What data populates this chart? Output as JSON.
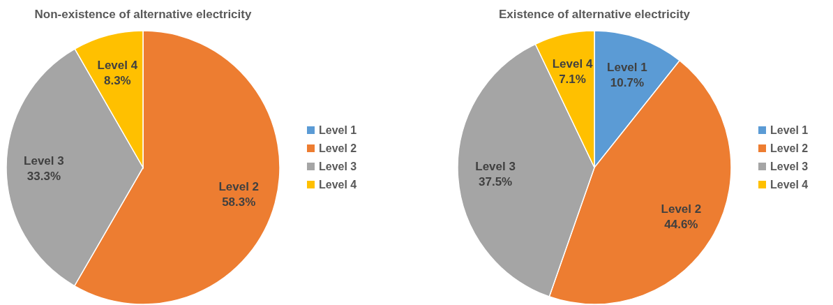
{
  "chart_data": [
    {
      "type": "pie",
      "title": "Non-existence of alternative electricity",
      "categories": [
        "Level 1",
        "Level 2",
        "Level 3",
        "Level 4"
      ],
      "values": [
        0,
        58.3,
        33.3,
        8.3
      ],
      "colors": [
        "#5b9bd5",
        "#ed7d31",
        "#a5a5a5",
        "#ffc000"
      ],
      "value_labels": [
        null,
        "58.3%",
        "33.3%",
        "8.3%"
      ],
      "legend": "right"
    },
    {
      "type": "pie",
      "title": "Existence of alternative electricity",
      "categories": [
        "Level 1",
        "Level 2",
        "Level 3",
        "Level 4"
      ],
      "values": [
        10.7,
        44.6,
        37.5,
        7.1
      ],
      "colors": [
        "#5b9bd5",
        "#ed7d31",
        "#a5a5a5",
        "#ffc000"
      ],
      "value_labels": [
        "10.7%",
        "44.6%",
        "37.5%",
        "7.1%"
      ],
      "legend": "right"
    }
  ]
}
